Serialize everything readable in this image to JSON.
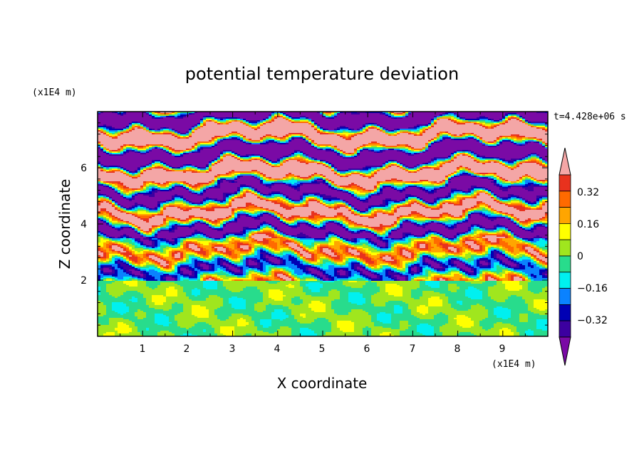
{
  "chart_data": {
    "type": "heatmap",
    "title": "potential temperature deviation",
    "xlabel": "X coordinate",
    "ylabel": "Z coordinate",
    "x_unit": "(x1E4 m)",
    "z_unit": "(x1E4 m)",
    "time_label": "t=4.428e+06 s",
    "xlim": [
      0,
      10
    ],
    "ylim": [
      0,
      8
    ],
    "x_ticks": [
      "1",
      "2",
      "3",
      "4",
      "5",
      "6",
      "7",
      "8",
      "9"
    ],
    "y_ticks": [
      "2",
      "4",
      "6"
    ],
    "colorbar": {
      "labels": [
        "0.32",
        "0.16",
        "0",
        "−0.16",
        "−0.32"
      ],
      "levels": [
        {
          "color": "#f4a6a6"
        },
        {
          "color": "#e8321e"
        },
        {
          "color": "#ff6a00"
        },
        {
          "color": "#ffa500"
        },
        {
          "color": "#ffff00"
        },
        {
          "color": "#a0e61e"
        },
        {
          "color": "#28dc8c"
        },
        {
          "color": "#00f0f0"
        },
        {
          "color": "#0a82ff"
        },
        {
          "color": "#0000b4"
        },
        {
          "color": "#3c00a0"
        },
        {
          "color": "#7a0aa5"
        }
      ]
    }
  }
}
